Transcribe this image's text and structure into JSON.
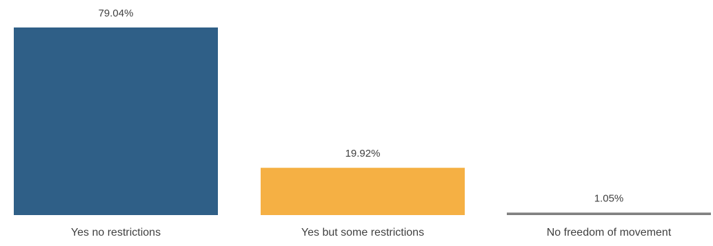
{
  "chart_data": {
    "type": "bar",
    "categories": [
      "Yes no restrictions",
      "Yes but some restrictions",
      "No freedom of movement"
    ],
    "values": [
      79.04,
      19.92,
      1.05
    ],
    "value_labels": [
      "79.04%",
      "19.92%",
      "1.05%"
    ],
    "colors": [
      "#2f5f87",
      "#f5b044",
      "#808080"
    ],
    "ylim": [
      0,
      79.04
    ],
    "grid": false,
    "legend": "none",
    "title": "",
    "xlabel": "",
    "ylabel": ""
  }
}
